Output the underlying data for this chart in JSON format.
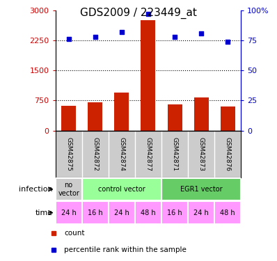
{
  "title": "GDS2009 / 223449_at",
  "samples": [
    "GSM42875",
    "GSM42872",
    "GSM42874",
    "GSM42877",
    "GSM42871",
    "GSM42873",
    "GSM42876"
  ],
  "counts": [
    620,
    700,
    950,
    2750,
    650,
    820,
    600
  ],
  "percentiles": [
    76,
    78,
    82,
    97,
    78,
    81,
    74
  ],
  "infection_groups": [
    {
      "label": "no\nvector",
      "span": [
        0,
        1
      ],
      "color": "#cccccc"
    },
    {
      "label": "control vector",
      "span": [
        1,
        4
      ],
      "color": "#99ff99"
    },
    {
      "label": "EGR1 vector",
      "span": [
        4,
        7
      ],
      "color": "#66cc66"
    }
  ],
  "time_labels": [
    "24 h",
    "16 h",
    "24 h",
    "48 h",
    "16 h",
    "24 h",
    "48 h"
  ],
  "time_color": "#ff99ff",
  "bar_color": "#cc2200",
  "scatter_color": "#0000cc",
  "ylim_left": [
    0,
    3000
  ],
  "ylim_right": [
    0,
    100
  ],
  "yticks_left": [
    0,
    750,
    1500,
    2250,
    3000
  ],
  "ytick_labels_left": [
    "0",
    "750",
    "1500",
    "2250",
    "3000"
  ],
  "yticks_right": [
    0,
    25,
    50,
    75,
    100
  ],
  "ytick_labels_right": [
    "0",
    "25",
    "50",
    "75",
    "100%"
  ],
  "grid_values": [
    750,
    1500,
    2250
  ],
  "background_color": "#ffffff",
  "label_infection": "infection",
  "label_time": "time",
  "legend_bar": "count",
  "legend_scatter": "percentile rank within the sample",
  "title_fontsize": 11,
  "tick_fontsize": 8,
  "sample_bg": "#cccccc"
}
